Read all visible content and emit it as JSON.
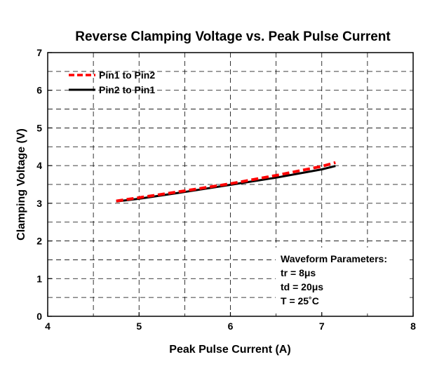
{
  "chart_data": {
    "type": "line",
    "title": "Reverse Clamping Voltage vs. Peak Pulse Current",
    "xlabel": "Peak Pulse Current (A)",
    "ylabel": "Clamping Voltage (V)",
    "xlim": [
      4,
      8
    ],
    "ylim": [
      0,
      7
    ],
    "xticks": [
      "4",
      "5",
      "6",
      "7",
      "8"
    ],
    "yticks": [
      "0",
      "1",
      "2",
      "3",
      "4",
      "5",
      "6",
      "7"
    ],
    "grid": true,
    "legend_position": "top-left",
    "series": [
      {
        "name": "Pin1 to Pin2",
        "color": "#ff0000",
        "style": "dashed",
        "x": [
          4.75,
          5.0,
          5.5,
          6.0,
          6.5,
          7.0,
          7.15
        ],
        "y": [
          3.06,
          3.15,
          3.33,
          3.52,
          3.74,
          3.98,
          4.08
        ]
      },
      {
        "name": "Pin2 to Pin1",
        "color": "#000000",
        "style": "solid",
        "x": [
          4.75,
          5.0,
          5.5,
          6.0,
          6.5,
          7.0,
          7.15
        ],
        "y": [
          3.05,
          3.12,
          3.3,
          3.49,
          3.68,
          3.9,
          3.99
        ]
      }
    ],
    "annotation": {
      "title": "Waveform Parameters:",
      "lines": [
        "tr = 8μs",
        "td = 20μs",
        "T = 25˚C"
      ]
    }
  }
}
